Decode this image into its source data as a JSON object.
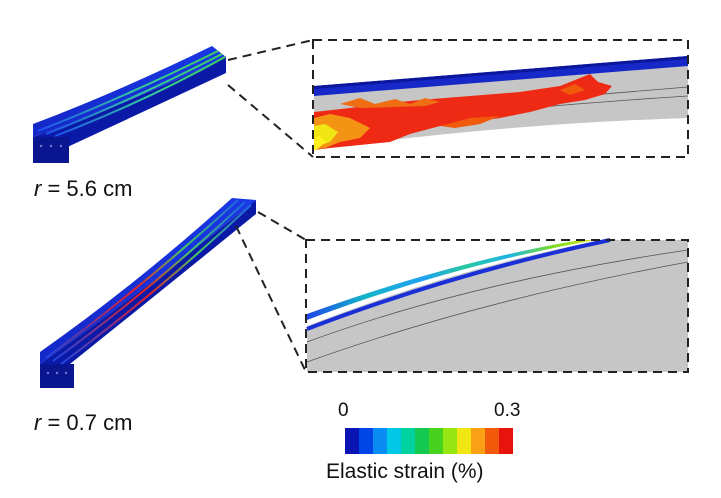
{
  "panels": [
    {
      "radius_symbol": "r",
      "radius_text": " = 5.6 cm"
    },
    {
      "radius_symbol": "r",
      "radius_text": " = 0.7 cm"
    }
  ],
  "colorbar": {
    "min_label": "0",
    "max_label": "0.3",
    "title": "Elastic strain (%)",
    "colors": [
      "#0a14b4",
      "#0046e6",
      "#0a8cf5",
      "#00c8e6",
      "#00d2a0",
      "#14c850",
      "#46d21e",
      "#96e614",
      "#f0e614",
      "#faa014",
      "#f05a0a",
      "#e6140a"
    ]
  },
  "colors": {
    "beam_blue": "#1a2fd6",
    "beam_dark": "#0b1790",
    "detail_gray": "#c4c4c4",
    "strain_red": "#f01e0a"
  }
}
